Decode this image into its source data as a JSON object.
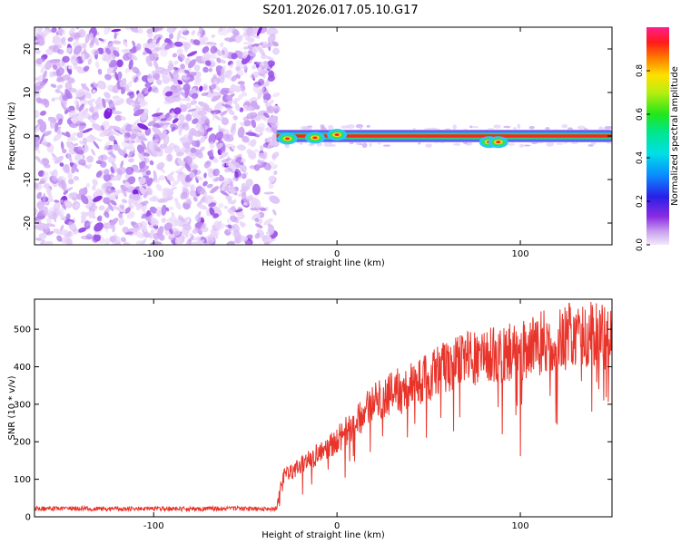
{
  "chart_data": [
    {
      "type": "heatmap",
      "title": "S201.2026.017.05.10.G17",
      "xlabel": "Height of straight line (km)",
      "ylabel": "Frequency (Hz)",
      "xlim": [
        -165,
        150
      ],
      "ylim": [
        -25,
        25
      ],
      "xticks": [
        -100,
        0,
        100
      ],
      "yticks": [
        -20,
        -10,
        0,
        10,
        20
      ],
      "noise_region_x": [
        -165,
        -33
      ],
      "signal_track": {
        "x_range": [
          -33,
          150
        ],
        "frequency": 0,
        "features": [
          {
            "x": -27,
            "freq": -0.6,
            "amp": 0.85
          },
          {
            "x": -12,
            "freq": -0.4,
            "amp": 0.85
          },
          {
            "x": 0,
            "freq": 0.3,
            "amp": 0.85
          },
          {
            "x": 83,
            "freq": -1.4,
            "amp": 0.85
          },
          {
            "x": 88,
            "freq": -1.4,
            "amp": 0.85
          }
        ]
      },
      "colorbar": {
        "label": "Normalized spectral amplitude",
        "min": 0,
        "max": 1,
        "ticks": [
          "0.0",
          "0.2",
          "0.4",
          "0.6",
          "0.8"
        ],
        "colormap": "rainbow"
      }
    },
    {
      "type": "line",
      "xlabel": "Height of straight line (km)",
      "ylabel": "SNR (10 * v/v)",
      "xlim": [
        -165,
        150
      ],
      "ylim": [
        0,
        580
      ],
      "xticks": [
        -100,
        0,
        100
      ],
      "yticks": [
        0,
        100,
        200,
        300,
        400,
        500
      ],
      "color": "#e8342a",
      "series": [
        {
          "name": "SNR",
          "x": [
            -165,
            -140,
            -120,
            -100,
            -80,
            -60,
            -40,
            -33,
            -30,
            -20,
            -10,
            0,
            10,
            20,
            30,
            40,
            50,
            60,
            70,
            80,
            90,
            100,
            110,
            120,
            130,
            140,
            150
          ],
          "values": [
            22,
            22,
            21,
            22,
            21,
            22,
            21,
            22,
            105,
            135,
            170,
            205,
            255,
            300,
            330,
            355,
            380,
            400,
            420,
            430,
            435,
            440,
            465,
            480,
            490,
            485,
            475
          ]
        }
      ]
    }
  ]
}
